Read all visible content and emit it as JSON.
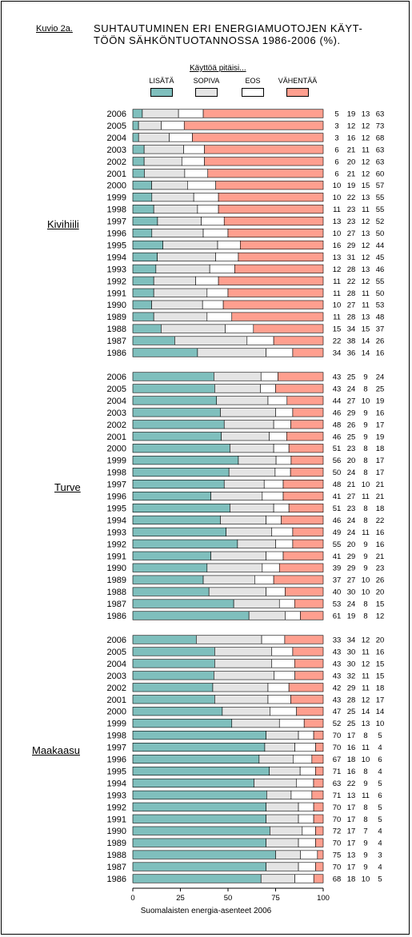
{
  "header": {
    "figure_label": "Kuvio 2a.",
    "title_line1": "SUHTAUTUMINEN ERI ENERGIAMUOTOJEN KÄYT-",
    "title_line2": "TÖÖN SÄHKÖNTUOTANNOSSA 1986-2006 (%)."
  },
  "footer": "Suomalaisten energia-asenteet 2006",
  "colors": {
    "lisata": "#7fbfbd",
    "sopiva": "#e4e4e4",
    "eos": "#ffffff",
    "vahenta": "#ff9f8f"
  },
  "chart_data": {
    "type": "bar",
    "orientation": "horizontal",
    "stacked": true,
    "legend_title": "Käyttöä pitäisi...",
    "legend_position": "top",
    "series_names": [
      "LISÄTÄ",
      "SOPIVA",
      "EOS",
      "VÄHENTÄÄ"
    ],
    "xlim": [
      0,
      100
    ],
    "x_ticks": [
      "0",
      "25",
      "50",
      "75",
      "100"
    ],
    "grid": false,
    "groups": [
      {
        "name": "Kivihiili",
        "rows": [
          {
            "year": "2006",
            "values": [
              5,
              19,
              13,
              63
            ]
          },
          {
            "year": "2005",
            "values": [
              3,
              12,
              12,
              73
            ]
          },
          {
            "year": "2004",
            "values": [
              3,
              16,
              12,
              68
            ]
          },
          {
            "year": "2003",
            "values": [
              6,
              21,
              11,
              63
            ]
          },
          {
            "year": "2002",
            "values": [
              6,
              20,
              12,
              63
            ]
          },
          {
            "year": "2001",
            "values": [
              6,
              21,
              12,
              60
            ]
          },
          {
            "year": "2000",
            "values": [
              10,
              19,
              15,
              57
            ]
          },
          {
            "year": "1999",
            "values": [
              10,
              22,
              13,
              55
            ]
          },
          {
            "year": "1998",
            "values": [
              11,
              23,
              11,
              55
            ]
          },
          {
            "year": "1997",
            "values": [
              13,
              23,
              12,
              52
            ]
          },
          {
            "year": "1996",
            "values": [
              10,
              27,
              13,
              50
            ]
          },
          {
            "year": "1995",
            "values": [
              16,
              29,
              12,
              44
            ]
          },
          {
            "year": "1994",
            "values": [
              13,
              31,
              12,
              45
            ]
          },
          {
            "year": "1993",
            "values": [
              12,
              28,
              13,
              46
            ]
          },
          {
            "year": "1992",
            "values": [
              11,
              22,
              12,
              55
            ]
          },
          {
            "year": "1991",
            "values": [
              11,
              28,
              11,
              50
            ]
          },
          {
            "year": "1990",
            "values": [
              10,
              27,
              11,
              53
            ]
          },
          {
            "year": "1989",
            "values": [
              11,
              28,
              13,
              48
            ]
          },
          {
            "year": "1988",
            "values": [
              15,
              34,
              15,
              37
            ]
          },
          {
            "year": "1987",
            "values": [
              22,
              38,
              14,
              26
            ]
          },
          {
            "year": "1986",
            "values": [
              34,
              36,
              14,
              16
            ]
          }
        ]
      },
      {
        "name": "Turve",
        "rows": [
          {
            "year": "2006",
            "values": [
              43,
              25,
              9,
              24
            ]
          },
          {
            "year": "2005",
            "values": [
              43,
              24,
              8,
              25
            ]
          },
          {
            "year": "2004",
            "values": [
              44,
              27,
              10,
              19
            ]
          },
          {
            "year": "2003",
            "values": [
              46,
              29,
              9,
              16
            ]
          },
          {
            "year": "2002",
            "values": [
              48,
              26,
              9,
              17
            ]
          },
          {
            "year": "2001",
            "values": [
              46,
              25,
              9,
              19
            ]
          },
          {
            "year": "2000",
            "values": [
              51,
              23,
              8,
              18
            ]
          },
          {
            "year": "1999",
            "values": [
              56,
              20,
              8,
              17
            ]
          },
          {
            "year": "1998",
            "values": [
              50,
              24,
              8,
              17
            ]
          },
          {
            "year": "1997",
            "values": [
              48,
              21,
              10,
              21
            ]
          },
          {
            "year": "1996",
            "values": [
              41,
              27,
              11,
              21
            ]
          },
          {
            "year": "1995",
            "values": [
              51,
              23,
              8,
              18
            ]
          },
          {
            "year": "1994",
            "values": [
              46,
              24,
              8,
              22
            ]
          },
          {
            "year": "1993",
            "values": [
              49,
              24,
              11,
              16
            ]
          },
          {
            "year": "1992",
            "values": [
              55,
              20,
              9,
              16
            ]
          },
          {
            "year": "1991",
            "values": [
              41,
              29,
              9,
              21
            ]
          },
          {
            "year": "1990",
            "values": [
              39,
              29,
              9,
              23
            ]
          },
          {
            "year": "1989",
            "values": [
              37,
              27,
              10,
              26
            ]
          },
          {
            "year": "1988",
            "values": [
              40,
              30,
              10,
              20
            ]
          },
          {
            "year": "1987",
            "values": [
              53,
              24,
              8,
              15
            ]
          },
          {
            "year": "1986",
            "values": [
              61,
              19,
              8,
              12
            ]
          }
        ]
      },
      {
        "name": "Maakaasu",
        "rows": [
          {
            "year": "2006",
            "values": [
              33,
              34,
              12,
              20
            ]
          },
          {
            "year": "2005",
            "values": [
              43,
              30,
              11,
              16
            ]
          },
          {
            "year": "2004",
            "values": [
              43,
              30,
              12,
              15
            ]
          },
          {
            "year": "2003",
            "values": [
              43,
              32,
              11,
              15
            ]
          },
          {
            "year": "2002",
            "values": [
              42,
              29,
              11,
              18
            ]
          },
          {
            "year": "2001",
            "values": [
              43,
              28,
              12,
              17
            ]
          },
          {
            "year": "2000",
            "values": [
              47,
              25,
              14,
              14
            ]
          },
          {
            "year": "1999",
            "values": [
              52,
              25,
              13,
              10
            ]
          },
          {
            "year": "1998",
            "values": [
              70,
              17,
              8,
              5
            ]
          },
          {
            "year": "1997",
            "values": [
              70,
              16,
              11,
              4
            ]
          },
          {
            "year": "1996",
            "values": [
              67,
              18,
              10,
              6
            ]
          },
          {
            "year": "1995",
            "values": [
              71,
              16,
              8,
              4
            ]
          },
          {
            "year": "1994",
            "values": [
              63,
              22,
              9,
              5
            ]
          },
          {
            "year": "1993",
            "values": [
              71,
              13,
              11,
              6
            ]
          },
          {
            "year": "1992",
            "values": [
              70,
              17,
              8,
              5
            ]
          },
          {
            "year": "1991",
            "values": [
              70,
              17,
              8,
              5
            ]
          },
          {
            "year": "1990",
            "values": [
              72,
              17,
              7,
              4
            ]
          },
          {
            "year": "1989",
            "values": [
              70,
              17,
              9,
              4
            ]
          },
          {
            "year": "1988",
            "values": [
              75,
              13,
              9,
              3
            ]
          },
          {
            "year": "1987",
            "values": [
              70,
              17,
              9,
              4
            ]
          },
          {
            "year": "1986",
            "values": [
              68,
              18,
              10,
              5
            ]
          }
        ]
      }
    ]
  }
}
